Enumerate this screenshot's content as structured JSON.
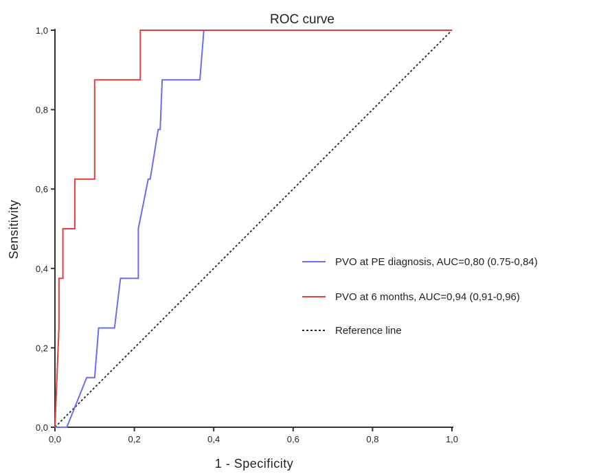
{
  "chart_data": {
    "type": "line",
    "title": "ROC curve",
    "xlabel": "1 - Specificity",
    "ylabel": "Sensitivity",
    "xlim": [
      0,
      1
    ],
    "ylim": [
      0,
      1
    ],
    "grid": false,
    "legend_position": "right",
    "x_ticks": [
      {
        "value": 0.0,
        "label": "0,0"
      },
      {
        "value": 0.2,
        "label": "0,2"
      },
      {
        "value": 0.4,
        "label": "0,4"
      },
      {
        "value": 0.6,
        "label": "0,6"
      },
      {
        "value": 0.8,
        "label": "0,8"
      },
      {
        "value": 1.0,
        "label": "1,0"
      }
    ],
    "y_ticks": [
      {
        "value": 0.0,
        "label": "0,0"
      },
      {
        "value": 0.2,
        "label": "0,2"
      },
      {
        "value": 0.4,
        "label": "0,4"
      },
      {
        "value": 0.6,
        "label": "0,6"
      },
      {
        "value": 0.8,
        "label": "0,8"
      },
      {
        "value": 1.0,
        "label": "1,0"
      }
    ],
    "series": [
      {
        "name": "PVO at PE diagnosis, AUC=0,80 (0.75-0,84)",
        "color": "#6b6bf2",
        "line_style": "solid",
        "x": [
          0.0,
          0.03,
          0.08,
          0.1,
          0.11,
          0.15,
          0.165,
          0.21,
          0.21,
          0.235,
          0.24,
          0.26,
          0.265,
          0.27,
          0.365,
          0.375,
          1.0
        ],
        "y": [
          0.0,
          0.0,
          0.125,
          0.125,
          0.25,
          0.25,
          0.375,
          0.375,
          0.5,
          0.625,
          0.625,
          0.75,
          0.75,
          0.875,
          0.875,
          1.0,
          1.0
        ]
      },
      {
        "name": "PVO at 6 months, AUC=0,94 (0,91-0,96)",
        "color": "#e63c3c",
        "line_style": "solid",
        "x": [
          0.0,
          0.01,
          0.01,
          0.02,
          0.02,
          0.05,
          0.05,
          0.1,
          0.1,
          0.215,
          0.215,
          1.0
        ],
        "y": [
          0.0,
          0.25,
          0.375,
          0.375,
          0.5,
          0.5,
          0.625,
          0.625,
          0.875,
          0.875,
          1.0,
          1.0
        ]
      },
      {
        "name": "Reference line",
        "color": "#222222",
        "line_style": "dashed",
        "x": [
          0.0,
          1.0
        ],
        "y": [
          0.0,
          1.0
        ]
      }
    ]
  }
}
